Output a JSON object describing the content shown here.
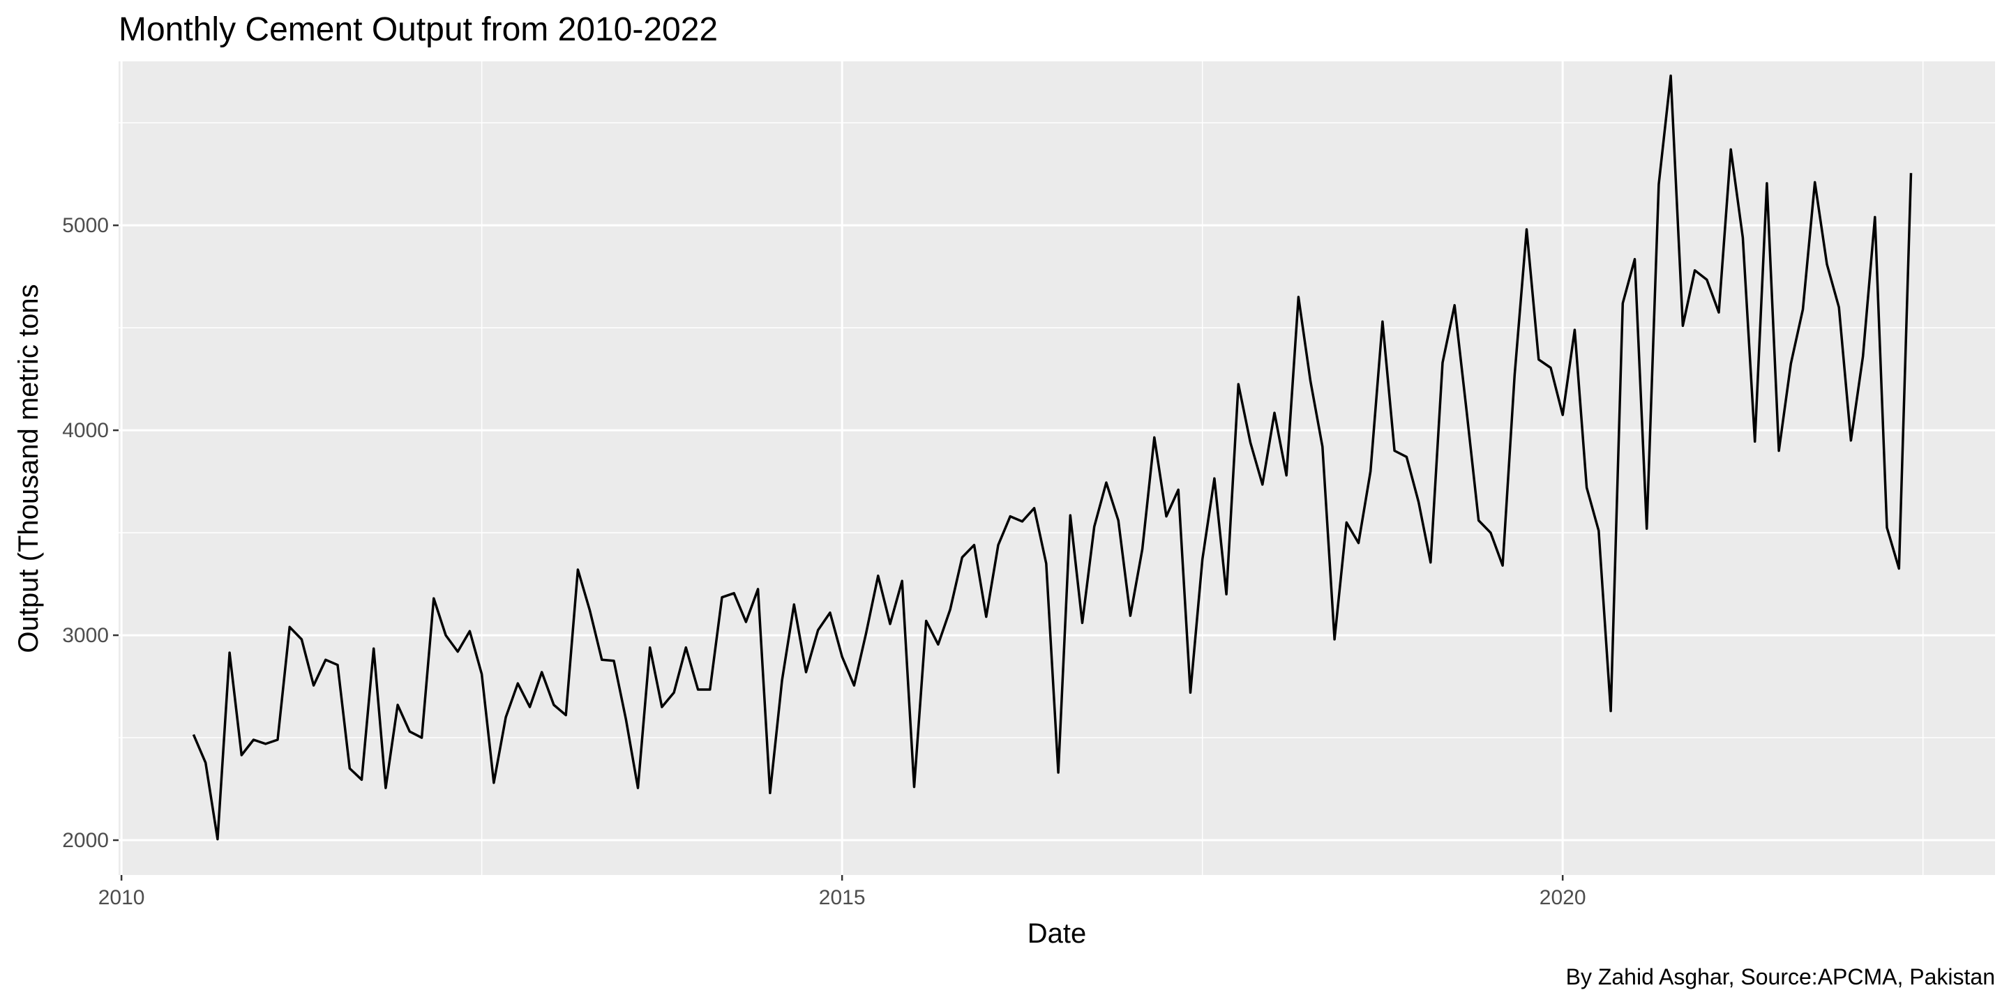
{
  "chart_data": {
    "type": "line",
    "title": "Monthly Cement Output from 2010-2022",
    "xlabel": "Date",
    "ylabel": "Output (Thousand metric tons",
    "caption": "By Zahid Asghar, Source:APCMA, Pakistan",
    "xlim": [
      2009.98,
      2023.0
    ],
    "ylim": [
      1830,
      5800
    ],
    "x_ticks": [
      2010,
      2015,
      2020
    ],
    "y_ticks": [
      2000,
      3000,
      4000,
      5000
    ],
    "grid": true,
    "legend": "none",
    "x_start": "2010-07",
    "x_end": "2022-09",
    "series": [
      {
        "values": [
          2515,
          2378,
          2005,
          2915,
          2415,
          2490,
          2470,
          2490,
          3040,
          2980,
          2755,
          2880,
          2855,
          2350,
          2295,
          2935,
          2255,
          2660,
          2530,
          2500,
          3180,
          3000,
          2920,
          3020,
          2810,
          2280,
          2600,
          2765,
          2650,
          2820,
          2660,
          2610,
          3320,
          3120,
          2880,
          2875,
          2590,
          2255,
          2940,
          2650,
          2720,
          2940,
          2735,
          2735,
          3185,
          3205,
          3065,
          3225,
          2230,
          2780,
          3150,
          2820,
          3025,
          3110,
          2895,
          2755,
          3010,
          3290,
          3055,
          3265,
          2260,
          3070,
          2955,
          3125,
          3380,
          3440,
          3090,
          3440,
          3580,
          3555,
          3620,
          3350,
          2330,
          3585,
          3060,
          3530,
          3745,
          3560,
          3095,
          3420,
          3965,
          3580,
          3710,
          2720,
          3370,
          3765,
          3200,
          4225,
          3940,
          3735,
          4085,
          3780,
          4650,
          4240,
          3920,
          2980,
          3550,
          3450,
          3800,
          4530,
          3900,
          3870,
          3650,
          3355,
          4330,
          4610,
          4095,
          3560,
          3500,
          3340,
          4270,
          4980,
          4345,
          4305,
          4075,
          4490,
          3720,
          3510,
          2630,
          4620,
          4835,
          3520,
          5200,
          5730,
          4510,
          4780,
          4735,
          4575,
          5370,
          4940,
          3945,
          5205,
          3900,
          4325,
          4590,
          5210,
          4810,
          4600,
          3950,
          4360,
          5040,
          3525,
          3325,
          5255
        ]
      }
    ]
  }
}
